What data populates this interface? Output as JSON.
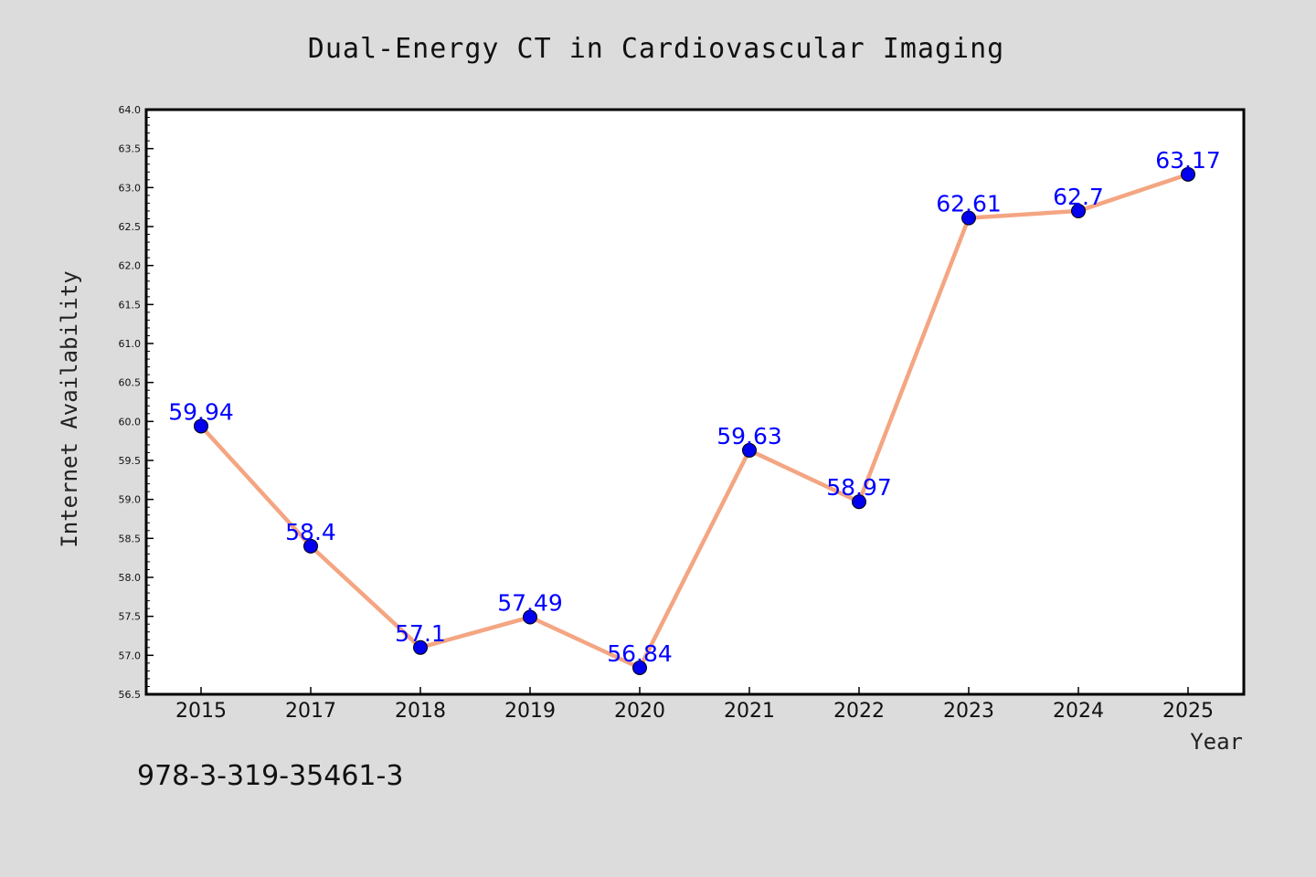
{
  "chart_data": {
    "type": "line",
    "title": "Dual-Energy CT in Cardiovascular Imaging",
    "xlabel": "Year",
    "ylabel": "Internet Availability",
    "categories": [
      "2015",
      "2017",
      "2018",
      "2019",
      "2020",
      "2021",
      "2022",
      "2023",
      "2024",
      "2025"
    ],
    "series": [
      {
        "values": [
          59.94,
          58.4,
          57.1,
          57.49,
          56.84,
          59.63,
          58.97,
          62.61,
          62.7,
          63.17
        ],
        "data_labels": [
          "59.94",
          "58.4",
          "57.1",
          "57.49",
          "56.84",
          "59.63",
          "58.97",
          "62.61",
          "62.7",
          "63.17"
        ],
        "line_color": "#f4a582",
        "marker_color": "#0000ee"
      }
    ],
    "ylim": [
      56.5,
      64.0
    ],
    "yticks": [
      "56.5",
      "57.0",
      "57.5",
      "58.0",
      "58.5",
      "59.0",
      "59.5",
      "60.0",
      "60.5",
      "61.0",
      "61.5",
      "62.0",
      "62.5",
      "63.0",
      "63.5",
      "64.0"
    ],
    "grid": false,
    "legend": false,
    "background_color": "#dcdcdc",
    "plot_color": "#ffffff",
    "label_color": "#0000ff"
  },
  "footer": {
    "isbn": "978-3-319-35461-3"
  }
}
